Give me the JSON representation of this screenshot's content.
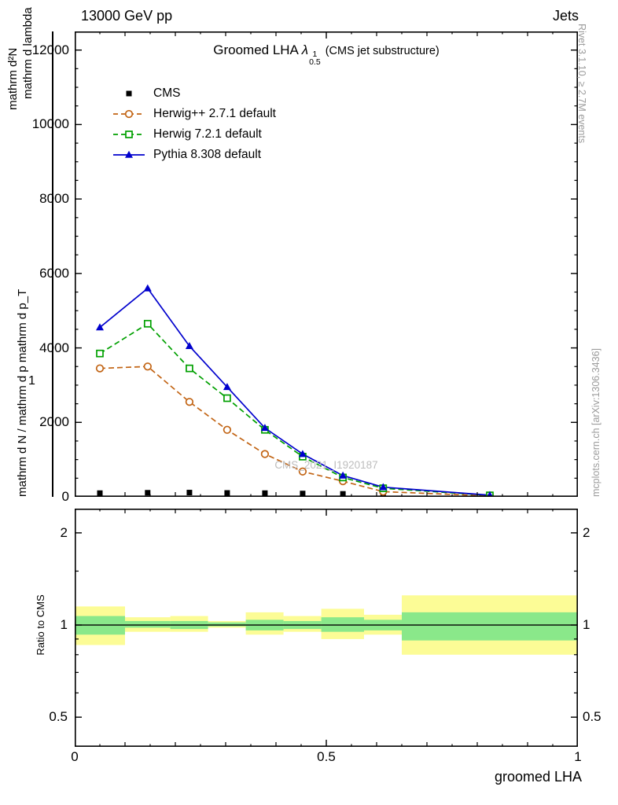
{
  "header": {
    "left": "13000 GeV pp",
    "right": "Jets"
  },
  "title": {
    "main": "Groomed LHA ",
    "lambda": "λ",
    "sup": "1",
    "sub": "0.5",
    "suffix": " (CMS jet substructure)"
  },
  "ylabel_garble": {
    "top_outer": "mathrm d²N",
    "top_inner": "mathrm d lambda",
    "bottom": "mathrm d N / mathrm d p mathrm d p_T",
    "numerator": "1"
  },
  "ratio_ylabel": "Ratio to CMS",
  "xlabel": "groomed LHA",
  "watermark": "CMS_2021_I1920187",
  "side_notes": {
    "rivet": "Rivet 3.1.10, ≥ 2.7M events",
    "mcplots": "mcplots.cern.ch [arXiv:1306.3436]"
  },
  "colors": {
    "cms": "#000000",
    "herwigpp": "#c26414",
    "herwig7": "#00a000",
    "pythia": "#0000cd",
    "band_yellow": "#fcfc96",
    "band_green": "#8ae88a"
  },
  "legend": [
    {
      "label": "CMS",
      "marker": "square-filled",
      "line": "none",
      "color": "#000000"
    },
    {
      "label": "Herwig++ 2.7.1 default",
      "marker": "circle-open",
      "line": "dashed",
      "color": "#c26414"
    },
    {
      "label": "Herwig 7.2.1 default",
      "marker": "square-open",
      "line": "dashed",
      "color": "#00a000"
    },
    {
      "label": "Pythia 8.308 default",
      "marker": "triangle-filled",
      "line": "solid",
      "color": "#0000cd"
    }
  ],
  "chart_data": {
    "type": "line",
    "title": "Groomed LHA λ^1_0.5 (CMS jet substructure)",
    "xlabel": "groomed LHA",
    "ylabel": "1/N d²N/(d p_T d lambda)",
    "xlim": [
      0,
      1
    ],
    "ylim": [
      0,
      12500
    ],
    "xticks": [
      0,
      0.5,
      1
    ],
    "yticks": [
      0,
      2000,
      4000,
      6000,
      8000,
      10000,
      12000
    ],
    "x": [
      0.05,
      0.145,
      0.228,
      0.303,
      0.378,
      0.453,
      0.533,
      0.613,
      0.825
    ],
    "series": [
      {
        "name": "CMS",
        "color": "#000000",
        "marker": "square-filled",
        "line": "none",
        "values": [
          100,
          110,
          115,
          105,
          100,
          90,
          80,
          70,
          40
        ]
      },
      {
        "name": "Herwig++ 2.7.1 default",
        "color": "#c26414",
        "marker": "circle-open",
        "line": "dashed",
        "values": [
          3450,
          3500,
          2550,
          1800,
          1150,
          680,
          420,
          140,
          25
        ]
      },
      {
        "name": "Herwig 7.2.1 default",
        "color": "#00a000",
        "marker": "square-open",
        "line": "dashed",
        "values": [
          3850,
          4650,
          3450,
          2650,
          1800,
          1080,
          520,
          230,
          40
        ]
      },
      {
        "name": "Pythia 8.308 default",
        "color": "#0000cd",
        "marker": "triangle-filled",
        "line": "solid",
        "values": [
          4550,
          5600,
          4050,
          2950,
          1850,
          1150,
          570,
          260,
          45
        ]
      }
    ],
    "ratio_panel": {
      "ylabel": "Ratio to CMS",
      "yscale": "log",
      "ylim": [
        0.4,
        2.4
      ],
      "yticks": [
        0.5,
        1,
        2
      ],
      "reference_line": 1,
      "bands": [
        {
          "x0": 0.0,
          "x1": 0.1,
          "yellow": [
            0.86,
            1.15
          ],
          "green": [
            0.93,
            1.07
          ]
        },
        {
          "x0": 0.1,
          "x1": 0.19,
          "yellow": [
            0.95,
            1.06
          ],
          "green": [
            0.98,
            1.03
          ]
        },
        {
          "x0": 0.19,
          "x1": 0.265,
          "yellow": [
            0.95,
            1.07
          ],
          "green": [
            0.97,
            1.03
          ]
        },
        {
          "x0": 0.265,
          "x1": 0.34,
          "yellow": [
            0.98,
            1.03
          ],
          "green": [
            0.99,
            1.02
          ]
        },
        {
          "x0": 0.34,
          "x1": 0.415,
          "yellow": [
            0.93,
            1.1
          ],
          "green": [
            0.96,
            1.04
          ]
        },
        {
          "x0": 0.415,
          "x1": 0.49,
          "yellow": [
            0.95,
            1.07
          ],
          "green": [
            0.97,
            1.03
          ]
        },
        {
          "x0": 0.49,
          "x1": 0.575,
          "yellow": [
            0.9,
            1.13
          ],
          "green": [
            0.95,
            1.06
          ]
        },
        {
          "x0": 0.575,
          "x1": 0.65,
          "yellow": [
            0.93,
            1.08
          ],
          "green": [
            0.96,
            1.04
          ]
        },
        {
          "x0": 0.65,
          "x1": 1.0,
          "yellow": [
            0.8,
            1.25
          ],
          "green": [
            0.89,
            1.1
          ]
        }
      ]
    }
  }
}
